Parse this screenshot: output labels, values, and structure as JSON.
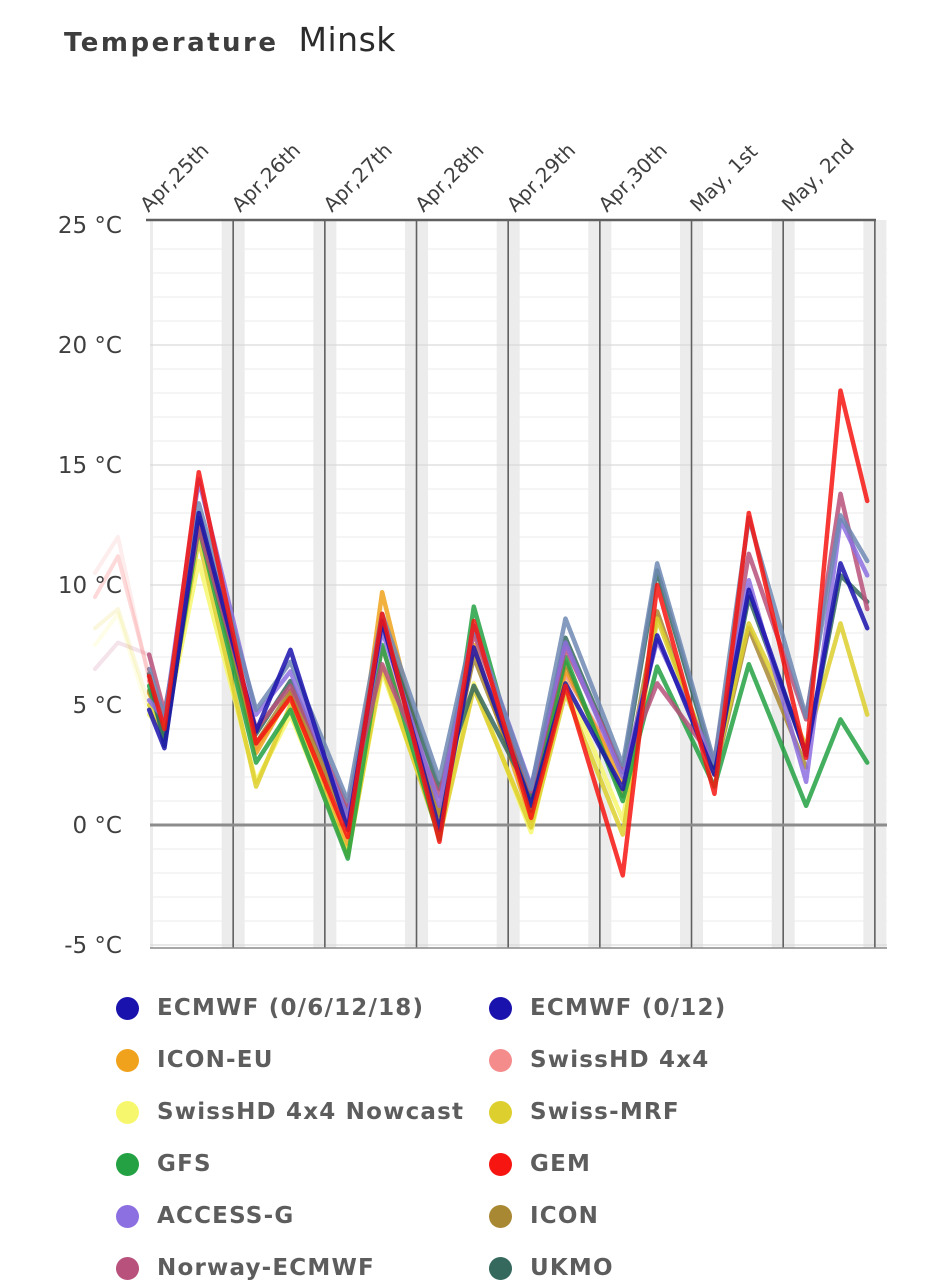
{
  "title": {
    "label": "Temperature",
    "city": "Minsk"
  },
  "y_axis": {
    "unit": "°C",
    "ticks": [
      {
        "label": "25 °C",
        "temp": 25
      },
      {
        "label": "20 °C",
        "temp": 20
      },
      {
        "label": "15 °C",
        "temp": 15
      },
      {
        "label": "10 °C",
        "temp": 10
      },
      {
        "label": "5 °C",
        "temp": 5
      },
      {
        "label": "0 °C",
        "temp": 0
      },
      {
        "label": "-5 °C",
        "temp": -5
      }
    ]
  },
  "x_axis": {
    "day_labels": [
      "Apr,25th",
      "Apr,26th",
      "Apr,27th",
      "Apr,28th",
      "Apr,29th",
      "Apr,30th",
      "May, 1st",
      "May, 2nd"
    ]
  },
  "chart_data": {
    "type": "line",
    "title": "Temperature Minsk",
    "ylabel": "°C",
    "ylim": [
      -5,
      25
    ],
    "grid": "on",
    "x_unit": "hours_since_Apr25_00h",
    "x_hours": [
      2,
      6,
      15,
      30,
      39,
      54,
      63,
      78,
      87,
      102,
      111,
      126,
      135,
      150,
      159,
      174,
      183,
      190
    ],
    "series": [
      {
        "name": "SwissHD 4x4 Nowcast",
        "color": "#f7f76e",
        "pre": [
          [
            95,
            7.5
          ],
          [
            118,
            8.8
          ]
        ],
        "temps": [
          4.6,
          3.9,
          11.0,
          1.8,
          4.6,
          -1.2,
          6.4,
          -0.3,
          5.9,
          -0.3,
          6.0,
          0.2,
          8.7
        ]
      },
      {
        "name": "SwissHD 4x4",
        "color": "#f58c8c",
        "pre": [
          [
            95,
            10.5
          ],
          [
            118,
            12.0
          ]
        ],
        "temps": [
          6.0,
          4.6,
          12.6,
          3.2,
          5.4,
          0.2,
          7.4,
          0.6,
          8.2,
          1.0,
          6.3,
          2.2
        ]
      },
      {
        "name": "ICON-EU",
        "color": "#f0a21c",
        "temps": [
          5.5,
          4.2,
          12.7,
          3.0,
          5.5,
          -0.8,
          9.7,
          0.0,
          7.5,
          0.2,
          6.5,
          1.8
        ]
      },
      {
        "name": "ICON",
        "color": "#a98834",
        "temps": [
          5.6,
          4.0,
          12.5,
          3.4,
          5.6,
          0.0,
          8.6,
          0.4,
          7.0,
          0.9,
          6.8,
          1.2,
          8.9,
          2.1,
          8.2,
          2.4
        ]
      },
      {
        "name": "Swiss-MRF",
        "color": "#ddcf2e",
        "pre": [
          [
            95,
            8.2
          ],
          [
            118,
            9.0
          ]
        ],
        "temps": [
          5.0,
          3.8,
          11.9,
          1.6,
          5.0,
          -1.3,
          6.6,
          -0.5,
          5.7,
          -0.1,
          5.5,
          -0.4,
          8.6,
          2.3,
          8.4,
          3.3,
          8.4,
          4.6
        ]
      },
      {
        "name": "GFS",
        "color": "#23a143",
        "temps": [
          5.8,
          3.6,
          12.4,
          2.6,
          4.8,
          -1.4,
          7.5,
          -0.6,
          9.1,
          0.6,
          7.0,
          1.0,
          6.6,
          1.6,
          6.7,
          0.8,
          4.4,
          2.6
        ]
      },
      {
        "name": "UKMO",
        "color": "#35695e",
        "temps": [
          6.3,
          3.3,
          12.8,
          3.8,
          6.0,
          0.5,
          8.3,
          1.5,
          5.8,
          1.2,
          7.8,
          2.2,
          10.6,
          2.4,
          9.5,
          3.0,
          10.4,
          9.3
        ]
      },
      {
        "name": "Norway-ECMWF",
        "color": "#b8517b",
        "pre": [
          [
            95,
            6.5
          ],
          [
            118,
            7.6
          ]
        ],
        "temps": [
          7.1,
          4.7,
          12.4,
          4.0,
          5.8,
          0.8,
          6.7,
          1.2,
          8.0,
          1.4,
          7.4,
          2.3,
          5.9,
          2.7,
          11.3,
          4.4,
          13.8,
          9.0
        ]
      },
      {
        "name": "ACCESS-G",
        "color": "#8c6fe0",
        "temps": [
          5.2,
          4.4,
          14.4,
          4.6,
          6.4,
          0.3,
          8.1,
          0.8,
          8.3,
          1.6,
          7.6,
          2.0,
          7.7,
          2.6,
          10.2,
          1.8,
          12.7,
          10.4
        ]
      },
      {
        "name": "ECMWF (0/12)",
        "color": "#1a12ad",
        "line_color": "#6e88b3",
        "temps": [
          6.5,
          4.5,
          13.4,
          4.8,
          6.8,
          1.0,
          8.8,
          1.9,
          8.3,
          1.5,
          8.6,
          2.5,
          10.9,
          2.6,
          12.8,
          4.5,
          12.9,
          11.0
        ]
      },
      {
        "name": "ECMWF (0/6/12/18)",
        "color": "#1a12ad",
        "temps": [
          4.8,
          3.2,
          13.0,
          3.9,
          7.3,
          -0.2,
          8.5,
          -0.2,
          7.4,
          0.8,
          5.9,
          1.5,
          7.9,
          2.1,
          9.8,
          2.9,
          10.9,
          8.2
        ]
      },
      {
        "name": "GEM",
        "color": "#f61511",
        "pre": [
          [
            95,
            9.5
          ],
          [
            118,
            11.2
          ]
        ],
        "temps": [
          6.2,
          4.0,
          14.7,
          3.4,
          5.3,
          -0.5,
          8.8,
          -0.7,
          8.5,
          0.3,
          5.8,
          -2.1,
          10.0,
          1.3,
          13.0,
          2.8,
          18.1,
          13.5
        ]
      }
    ]
  },
  "legend": {
    "left": [
      "ECMWF (0/6/12/18)",
      "ICON-EU",
      "SwissHD 4x4 Nowcast",
      "GFS",
      "ACCESS-G",
      "Norway-ECMWF"
    ],
    "right": [
      "ECMWF (0/12)",
      "SwissHD 4x4",
      "Swiss-MRF",
      "GEM",
      "ICON",
      "UKMO"
    ]
  },
  "colors": {
    "band": "#ececec",
    "grid_minor": "#ebebeb",
    "grid_major": "#d9d9d9",
    "zero_line": "#8c8c8c",
    "axis_dark": "#606060",
    "tick_text": "#3f3f3f"
  }
}
